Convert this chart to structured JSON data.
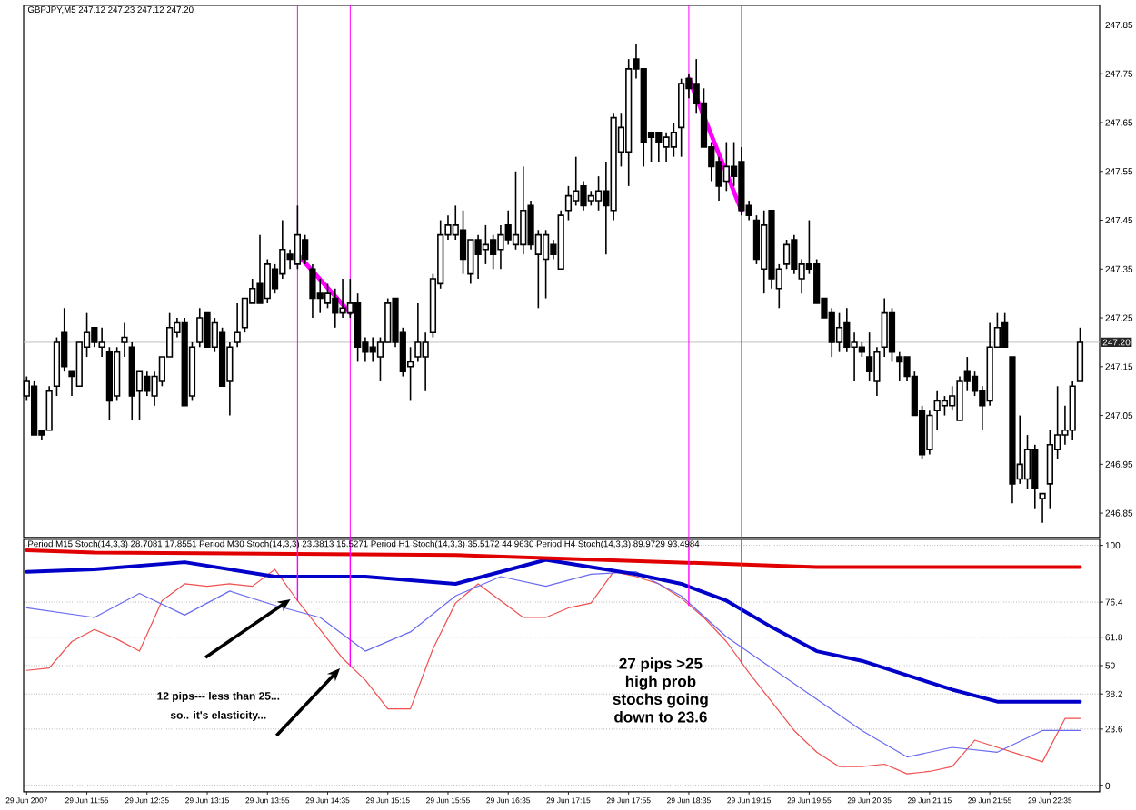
{
  "chart_data": [
    {
      "type": "candlestick",
      "title": "GBPJPY,M5 247.12 247.23 247.12 247.20",
      "color": "#000000",
      "x": [
        "2007-06-29T11:15",
        "2007-06-29T11:20",
        "2007-06-29T11:25",
        "2007-06-29T11:30",
        "2007-06-29T11:35",
        "2007-06-29T11:40",
        "2007-06-29T11:45",
        "2007-06-29T11:50",
        "2007-06-29T11:55",
        "2007-06-29T12:00",
        "2007-06-29T12:05",
        "2007-06-29T12:10",
        "2007-06-29T12:15",
        "2007-06-29T12:20",
        "2007-06-29T12:25",
        "2007-06-29T12:30",
        "2007-06-29T12:35",
        "2007-06-29T12:40",
        "2007-06-29T12:45",
        "2007-06-29T12:50",
        "2007-06-29T12:55",
        "2007-06-29T13:00",
        "2007-06-29T13:05",
        "2007-06-29T13:10",
        "2007-06-29T13:15",
        "2007-06-29T13:20",
        "2007-06-29T13:25",
        "2007-06-29T13:30",
        "2007-06-29T13:35",
        "2007-06-29T13:40",
        "2007-06-29T13:45",
        "2007-06-29T13:50",
        "2007-06-29T13:55",
        "2007-06-29T14:00",
        "2007-06-29T14:05",
        "2007-06-29T14:10",
        "2007-06-29T14:15",
        "2007-06-29T14:20",
        "2007-06-29T14:25",
        "2007-06-29T14:30",
        "2007-06-29T14:35",
        "2007-06-29T14:40",
        "2007-06-29T14:45",
        "2007-06-29T14:50",
        "2007-06-29T14:55",
        "2007-06-29T15:00",
        "2007-06-29T15:05",
        "2007-06-29T15:10",
        "2007-06-29T15:15",
        "2007-06-29T15:20",
        "2007-06-29T15:25",
        "2007-06-29T15:30",
        "2007-06-29T15:35",
        "2007-06-29T15:40",
        "2007-06-29T15:45",
        "2007-06-29T15:50",
        "2007-06-29T15:55",
        "2007-06-29T16:00",
        "2007-06-29T16:05",
        "2007-06-29T16:10",
        "2007-06-29T16:15",
        "2007-06-29T16:20",
        "2007-06-29T16:25",
        "2007-06-29T16:30",
        "2007-06-29T16:35",
        "2007-06-29T16:40",
        "2007-06-29T16:45",
        "2007-06-29T16:50",
        "2007-06-29T16:55",
        "2007-06-29T17:00",
        "2007-06-29T17:05",
        "2007-06-29T17:10",
        "2007-06-29T17:15",
        "2007-06-29T17:20",
        "2007-06-29T17:25",
        "2007-06-29T17:30",
        "2007-06-29T17:35",
        "2007-06-29T17:40",
        "2007-06-29T17:45",
        "2007-06-29T17:50",
        "2007-06-29T17:55",
        "2007-06-29T18:00",
        "2007-06-29T18:05",
        "2007-06-29T18:10",
        "2007-06-29T18:15",
        "2007-06-29T18:20",
        "2007-06-29T18:25",
        "2007-06-29T18:30",
        "2007-06-29T18:35",
        "2007-06-29T18:40",
        "2007-06-29T18:45",
        "2007-06-29T18:50",
        "2007-06-29T18:55",
        "2007-06-29T19:00",
        "2007-06-29T19:05",
        "2007-06-29T19:10",
        "2007-06-29T19:15",
        "2007-06-29T19:20",
        "2007-06-29T19:25",
        "2007-06-29T19:30",
        "2007-06-29T19:35",
        "2007-06-29T19:40",
        "2007-06-29T19:45",
        "2007-06-29T19:50",
        "2007-06-29T19:55",
        "2007-06-29T20:00",
        "2007-06-29T20:05",
        "2007-06-29T20:10",
        "2007-06-29T20:15",
        "2007-06-29T20:20",
        "2007-06-29T20:25",
        "2007-06-29T20:30",
        "2007-06-29T20:35",
        "2007-06-29T20:40",
        "2007-06-29T20:45",
        "2007-06-29T20:50",
        "2007-06-29T20:55",
        "2007-06-29T21:00",
        "2007-06-29T21:05",
        "2007-06-29T21:10",
        "2007-06-29T21:15",
        "2007-06-29T21:20",
        "2007-06-29T21:25",
        "2007-06-29T21:30",
        "2007-06-29T21:35",
        "2007-06-29T21:40",
        "2007-06-29T21:45",
        "2007-06-29T21:50",
        "2007-06-29T21:55",
        "2007-06-29T22:00",
        "2007-06-29T22:05",
        "2007-06-29T22:10",
        "2007-06-29T22:15",
        "2007-06-29T22:20",
        "2007-06-29T22:25",
        "2007-06-29T22:30",
        "2007-06-29T22:35",
        "2007-06-29T22:40",
        "2007-06-29T22:45",
        "2007-06-29T22:50",
        "2007-06-29T22:55"
      ],
      "ohlc": [
        [
          247.09,
          247.13,
          247.08,
          247.12
        ],
        [
          247.11,
          247.12,
          247.01,
          247.01
        ],
        [
          247.02,
          247.02,
          247.0,
          247.01
        ],
        [
          247.02,
          247.11,
          247.02,
          247.1
        ],
        [
          247.11,
          247.21,
          247.09,
          247.2
        ],
        [
          247.22,
          247.27,
          247.14,
          247.15
        ],
        [
          247.14,
          247.14,
          247.09,
          247.13
        ],
        [
          247.11,
          247.2,
          247.11,
          247.2
        ],
        [
          247.19,
          247.26,
          247.17,
          247.22
        ],
        [
          247.23,
          247.23,
          247.19,
          247.2
        ],
        [
          247.19,
          247.23,
          247.17,
          247.2
        ],
        [
          247.18,
          247.19,
          247.04,
          247.08
        ],
        [
          247.09,
          247.19,
          247.08,
          247.18
        ],
        [
          247.2,
          247.24,
          247.17,
          247.21
        ],
        [
          247.19,
          247.2,
          247.04,
          247.09
        ],
        [
          247.1,
          247.14,
          247.04,
          247.14
        ],
        [
          247.13,
          247.14,
          247.09,
          247.1
        ],
        [
          247.09,
          247.14,
          247.07,
          247.13
        ],
        [
          247.12,
          247.17,
          247.11,
          247.17
        ],
        [
          247.17,
          247.26,
          247.17,
          247.23
        ],
        [
          247.22,
          247.25,
          247.21,
          247.24
        ],
        [
          247.24,
          247.25,
          247.07,
          247.07
        ],
        [
          247.09,
          247.2,
          247.08,
          247.19
        ],
        [
          247.2,
          247.27,
          247.19,
          247.25
        ],
        [
          247.26,
          247.26,
          247.19,
          247.19
        ],
        [
          247.19,
          247.25,
          247.18,
          247.24
        ],
        [
          247.22,
          247.23,
          247.11,
          247.11
        ],
        [
          247.12,
          247.2,
          247.05,
          247.19
        ],
        [
          247.2,
          247.28,
          247.19,
          247.22
        ],
        [
          247.23,
          247.29,
          247.22,
          247.29
        ],
        [
          247.28,
          247.33,
          247.28,
          247.31
        ],
        [
          247.32,
          247.42,
          247.28,
          247.28
        ],
        [
          247.29,
          247.37,
          247.28,
          247.36
        ],
        [
          247.35,
          247.36,
          247.3,
          247.31
        ],
        [
          247.34,
          247.45,
          247.33,
          247.39
        ],
        [
          247.38,
          247.39,
          247.35,
          247.37
        ],
        [
          247.36,
          247.48,
          247.35,
          247.42
        ],
        [
          247.41,
          247.42,
          247.36,
          247.37
        ],
        [
          247.35,
          247.36,
          247.25,
          247.29
        ],
        [
          247.3,
          247.33,
          247.26,
          247.29
        ],
        [
          247.28,
          247.32,
          247.27,
          247.3
        ],
        [
          247.29,
          247.31,
          247.23,
          247.26
        ],
        [
          247.26,
          247.33,
          247.25,
          247.27
        ],
        [
          247.26,
          247.33,
          247.25,
          247.28
        ],
        [
          247.28,
          247.3,
          247.16,
          247.19
        ],
        [
          247.2,
          247.21,
          247.16,
          247.18
        ],
        [
          247.19,
          247.21,
          247.16,
          247.18
        ],
        [
          247.17,
          247.21,
          247.12,
          247.2
        ],
        [
          247.2,
          247.29,
          247.2,
          247.28
        ],
        [
          247.29,
          247.29,
          247.19,
          247.2
        ],
        [
          247.22,
          247.23,
          247.13,
          247.14
        ],
        [
          247.15,
          247.19,
          247.08,
          247.16
        ],
        [
          247.17,
          247.28,
          247.16,
          247.2
        ],
        [
          247.17,
          247.22,
          247.1,
          247.2
        ],
        [
          247.22,
          247.34,
          247.21,
          247.33
        ],
        [
          247.32,
          247.45,
          247.31,
          247.42
        ],
        [
          247.42,
          247.46,
          247.41,
          247.44
        ],
        [
          247.42,
          247.48,
          247.41,
          247.44
        ],
        [
          247.43,
          247.47,
          247.34,
          247.37
        ],
        [
          247.34,
          247.41,
          247.32,
          247.41
        ],
        [
          247.41,
          247.42,
          247.33,
          247.38
        ],
        [
          247.39,
          247.44,
          247.36,
          247.4
        ],
        [
          247.41,
          247.42,
          247.35,
          247.38
        ],
        [
          247.39,
          247.44,
          247.35,
          247.42
        ],
        [
          247.44,
          247.47,
          247.4,
          247.41
        ],
        [
          247.4,
          247.55,
          247.39,
          247.42
        ],
        [
          247.4,
          247.56,
          247.38,
          247.47
        ],
        [
          247.48,
          247.49,
          247.39,
          247.4
        ],
        [
          247.38,
          247.43,
          247.27,
          247.42
        ],
        [
          247.37,
          247.43,
          247.29,
          247.42
        ],
        [
          247.4,
          247.41,
          247.37,
          247.38
        ],
        [
          247.35,
          247.47,
          247.35,
          247.46
        ],
        [
          247.47,
          247.52,
          247.45,
          247.5
        ],
        [
          247.49,
          247.58,
          247.48,
          247.51
        ],
        [
          247.52,
          247.53,
          247.47,
          247.48
        ],
        [
          247.49,
          247.51,
          247.48,
          247.5
        ],
        [
          247.49,
          247.54,
          247.47,
          247.51
        ],
        [
          247.51,
          247.57,
          247.38,
          247.48
        ],
        [
          247.47,
          247.67,
          247.45,
          247.66
        ],
        [
          247.59,
          247.67,
          247.56,
          247.64
        ],
        [
          247.59,
          247.78,
          247.52,
          247.76
        ],
        [
          247.78,
          247.81,
          247.74,
          247.76
        ],
        [
          247.76,
          247.76,
          247.56,
          247.61
        ],
        [
          247.63,
          247.63,
          247.57,
          247.62
        ],
        [
          247.63,
          247.63,
          247.57,
          247.61
        ],
        [
          247.6,
          247.63,
          247.57,
          247.62
        ],
        [
          247.6,
          247.65,
          247.58,
          247.63
        ],
        [
          247.64,
          247.74,
          247.58,
          247.73
        ],
        [
          247.74,
          247.75,
          247.7,
          247.72
        ],
        [
          247.73,
          247.78,
          247.67,
          247.69
        ],
        [
          247.69,
          247.72,
          247.6,
          247.6
        ],
        [
          247.6,
          247.61,
          247.53,
          247.56
        ],
        [
          247.57,
          247.58,
          247.49,
          247.52
        ],
        [
          247.53,
          247.61,
          247.51,
          247.56
        ],
        [
          247.56,
          247.61,
          247.52,
          247.54
        ],
        [
          247.57,
          247.6,
          247.46,
          247.47
        ],
        [
          247.48,
          247.49,
          247.45,
          247.46
        ],
        [
          247.45,
          247.46,
          247.36,
          247.37
        ],
        [
          247.35,
          247.47,
          247.3,
          247.44
        ],
        [
          247.47,
          247.47,
          247.31,
          247.33
        ],
        [
          247.31,
          247.36,
          247.27,
          247.35
        ],
        [
          247.36,
          247.41,
          247.35,
          247.4
        ],
        [
          247.41,
          247.42,
          247.34,
          247.35
        ],
        [
          247.33,
          247.37,
          247.3,
          247.36
        ],
        [
          247.36,
          247.45,
          247.34,
          247.35
        ],
        [
          247.36,
          247.37,
          247.28,
          247.28
        ],
        [
          247.29,
          247.29,
          247.25,
          247.25
        ],
        [
          247.26,
          247.27,
          247.17,
          247.2
        ],
        [
          247.2,
          247.26,
          247.18,
          247.23
        ],
        [
          247.24,
          247.27,
          247.18,
          247.19
        ],
        [
          247.19,
          247.22,
          247.12,
          247.2
        ],
        [
          247.19,
          247.2,
          247.17,
          247.18
        ],
        [
          247.17,
          247.22,
          247.12,
          247.14
        ],
        [
          247.12,
          247.19,
          247.09,
          247.18
        ],
        [
          247.19,
          247.29,
          247.17,
          247.26
        ],
        [
          247.26,
          247.27,
          247.16,
          247.18
        ],
        [
          247.17,
          247.18,
          247.12,
          247.16
        ],
        [
          247.17,
          247.17,
          247.12,
          247.13
        ],
        [
          247.13,
          247.14,
          247.05,
          247.05
        ],
        [
          247.06,
          247.07,
          246.96,
          246.97
        ],
        [
          246.98,
          247.06,
          246.97,
          247.05
        ],
        [
          247.06,
          247.1,
          247.02,
          247.08
        ],
        [
          247.07,
          247.09,
          247.05,
          247.08
        ],
        [
          247.07,
          247.11,
          247.06,
          247.09
        ],
        [
          247.04,
          247.13,
          247.04,
          247.12
        ],
        [
          247.14,
          247.17,
          247.1,
          247.12
        ],
        [
          247.13,
          247.14,
          247.09,
          247.1
        ],
        [
          247.1,
          247.11,
          247.02,
          247.07
        ],
        [
          247.08,
          247.24,
          247.07,
          247.19
        ],
        [
          247.19,
          247.26,
          247.19,
          247.23
        ],
        [
          247.24,
          247.26,
          247.19,
          247.19
        ],
        [
          247.17,
          247.17,
          246.87,
          246.91
        ],
        [
          246.92,
          247.05,
          246.91,
          246.95
        ],
        [
          246.92,
          247.01,
          246.9,
          246.98
        ],
        [
          246.98,
          246.99,
          246.86,
          246.9
        ],
        [
          246.88,
          246.89,
          246.83,
          246.89
        ],
        [
          246.91,
          247.02,
          246.86,
          246.99
        ],
        [
          246.98,
          247.11,
          246.96,
          247.01
        ],
        [
          247.01,
          247.07,
          246.99,
          247.02
        ],
        [
          247.02,
          247.12,
          247.0,
          247.11
        ],
        [
          247.12,
          247.23,
          247.12,
          247.2
        ]
      ],
      "series": [
        {
          "type": "line",
          "x": [
            "2007-06-29T14:15",
            "2007-06-29T14:50"
          ],
          "values": [
            247.38,
            247.26
          ],
          "color": "#ff00ff"
        },
        {
          "type": "line",
          "x": [
            "2007-06-29T18:35",
            "2007-06-29T19:10"
          ],
          "values": [
            247.74,
            247.47
          ],
          "color": "#ff00ff"
        }
      ],
      "xlim": [
        "2007-06-29T11:13",
        "2007-06-29T23:08"
      ],
      "ylim": [
        246.8,
        247.89
      ],
      "yticks": [
        246.85,
        246.95,
        247.05,
        247.15,
        247.25,
        247.35,
        247.45,
        247.55,
        247.65,
        247.75,
        247.85
      ],
      "ref_lines": [
        {
          "axis": "y",
          "value": 247.2,
          "label": "247.20",
          "color": "#c0c0c0"
        },
        {
          "axis": "x",
          "value": "2007-06-29T14:15",
          "color": "#ff00ff"
        },
        {
          "axis": "x",
          "value": "2007-06-29T14:50",
          "color": "#ff00ff"
        },
        {
          "axis": "x",
          "value": "2007-06-29T18:35",
          "color": "#ff00ff"
        },
        {
          "axis": "x",
          "value": "2007-06-29T19:10",
          "color": "#ff00ff"
        }
      ],
      "tick_labels": "y"
    },
    {
      "type": "line",
      "title": "Period M15 Stoch(14,3,3) 28.7081 17.8551 Period M30 Stoch(14,3,3) 23.3813 15.5271 Period H1 Stoch(14,3,3) 35.5172 44.9630 Period H4 Stoch(14,3,3) 89.9729 93.4984",
      "series": [
        {
          "color": "#f05050",
          "x": [
            "2007-06-29T11:15",
            "2007-06-29T11:30",
            "2007-06-29T11:45",
            "2007-06-29T12:00",
            "2007-06-29T12:15",
            "2007-06-29T12:30",
            "2007-06-29T12:45",
            "2007-06-29T13:00",
            "2007-06-29T13:15",
            "2007-06-29T13:30",
            "2007-06-29T13:45",
            "2007-06-29T14:00",
            "2007-06-29T14:15",
            "2007-06-29T14:30",
            "2007-06-29T14:45",
            "2007-06-29T15:00",
            "2007-06-29T15:15",
            "2007-06-29T15:30",
            "2007-06-29T15:45",
            "2007-06-29T16:00",
            "2007-06-29T16:15",
            "2007-06-29T16:30",
            "2007-06-29T16:45",
            "2007-06-29T17:00",
            "2007-06-29T17:15",
            "2007-06-29T17:30",
            "2007-06-29T17:45",
            "2007-06-29T18:00",
            "2007-06-29T18:15",
            "2007-06-29T18:30",
            "2007-06-29T18:45",
            "2007-06-29T19:00",
            "2007-06-29T19:15",
            "2007-06-29T19:30",
            "2007-06-29T19:45",
            "2007-06-29T20:00",
            "2007-06-29T20:15",
            "2007-06-29T20:30",
            "2007-06-29T20:45",
            "2007-06-29T21:00",
            "2007-06-29T21:15",
            "2007-06-29T21:30",
            "2007-06-29T21:45",
            "2007-06-29T22:00",
            "2007-06-29T22:15",
            "2007-06-29T22:30",
            "2007-06-29T22:45",
            "2007-06-29T22:55"
          ],
          "values": [
            48,
            49,
            60,
            65,
            61,
            56,
            77,
            84,
            83,
            84,
            83,
            90,
            77,
            65,
            53,
            44,
            32,
            32,
            57,
            76,
            84,
            77,
            70,
            70,
            74,
            76,
            89,
            87,
            84,
            78,
            70,
            60,
            47,
            35,
            23,
            14,
            8,
            8,
            9,
            5,
            6,
            8,
            19,
            16,
            13,
            10,
            28,
            28
          ]
        },
        {
          "color": "#6a6af0",
          "x": [
            "2007-06-29T11:15",
            "2007-06-29T12:00",
            "2007-06-29T12:30",
            "2007-06-29T13:00",
            "2007-06-29T13:30",
            "2007-06-29T14:00",
            "2007-06-29T14:30",
            "2007-06-29T15:00",
            "2007-06-29T15:30",
            "2007-06-29T16:00",
            "2007-06-29T16:30",
            "2007-06-29T17:00",
            "2007-06-29T17:30",
            "2007-06-29T18:00",
            "2007-06-29T18:30",
            "2007-06-29T19:00",
            "2007-06-29T19:30",
            "2007-06-29T20:00",
            "2007-06-29T20:30",
            "2007-06-29T21:00",
            "2007-06-29T21:30",
            "2007-06-29T22:00",
            "2007-06-29T22:30",
            "2007-06-29T22:55"
          ],
          "values": [
            74,
            70,
            80,
            71,
            81,
            75,
            70,
            56,
            64,
            79,
            87,
            83,
            88,
            89,
            79,
            62,
            49,
            36,
            23,
            12,
            16,
            14,
            23,
            23
          ]
        },
        {
          "color": "#0000c8",
          "x": [
            "2007-06-29T11:15",
            "2007-06-29T12:00",
            "2007-06-29T13:00",
            "2007-06-29T14:00",
            "2007-06-29T15:00",
            "2007-06-29T16:00",
            "2007-06-29T17:00",
            "2007-06-29T17:30",
            "2007-06-29T18:00",
            "2007-06-29T18:30",
            "2007-06-29T19:00",
            "2007-06-29T19:30",
            "2007-06-29T20:00",
            "2007-06-29T20:30",
            "2007-06-29T21:00",
            "2007-06-29T21:30",
            "2007-06-29T22:00",
            "2007-06-29T22:55"
          ],
          "values": [
            89,
            90,
            93,
            87,
            87,
            84,
            94,
            91,
            88,
            84,
            77,
            66,
            56,
            52,
            46,
            40,
            35,
            35
          ]
        },
        {
          "color": "#e00000",
          "x": [
            "2007-06-29T11:15",
            "2007-06-29T12:00",
            "2007-06-29T16:00",
            "2007-06-29T20:00",
            "2007-06-29T22:55"
          ],
          "values": [
            98,
            97,
            96,
            91,
            91
          ]
        },
        {
          "color": "#ff00ff",
          "x": [
            "2007-06-29T14:15",
            "2007-06-29T14:15"
          ],
          "values": [
            102.5,
            77
          ]
        },
        {
          "color": "#ff00ff",
          "x": [
            "2007-06-29T14:50",
            "2007-06-29T14:50"
          ],
          "values": [
            102.5,
            50
          ]
        },
        {
          "color": "#ff00ff",
          "x": [
            "2007-06-29T18:35",
            "2007-06-29T18:35"
          ],
          "values": [
            102.5,
            75
          ]
        },
        {
          "color": "#ff00ff",
          "x": [
            "2007-06-29T19:10",
            "2007-06-29T19:10"
          ],
          "values": [
            102.5,
            51
          ]
        }
      ],
      "xlim": [
        "2007-06-29T11:13",
        "2007-06-29T23:08"
      ],
      "ylim": [
        -2.5,
        102.5
      ],
      "xticks": [
        {
          "value": "2007-06-29T11:15",
          "label": "29 Jun 2007"
        },
        {
          "value": "2007-06-29T11:55",
          "label": "29 Jun 11:55"
        },
        {
          "value": "2007-06-29T12:35",
          "label": "29 Jun 12:35"
        },
        {
          "value": "2007-06-29T13:15",
          "label": "29 Jun 13:15"
        },
        {
          "value": "2007-06-29T13:55",
          "label": "29 Jun 13:55"
        },
        {
          "value": "2007-06-29T14:35",
          "label": "29 Jun 14:35"
        },
        {
          "value": "2007-06-29T15:15",
          "label": "29 Jun 15:15"
        },
        {
          "value": "2007-06-29T15:55",
          "label": "29 Jun 15:55"
        },
        {
          "value": "2007-06-29T16:35",
          "label": "29 Jun 16:35"
        },
        {
          "value": "2007-06-29T17:15",
          "label": "29 Jun 17:15"
        },
        {
          "value": "2007-06-29T17:55",
          "label": "29 Jun 17:55"
        },
        {
          "value": "2007-06-29T18:35",
          "label": "29 Jun 18:35"
        },
        {
          "value": "2007-06-29T19:15",
          "label": "29 Jun 19:15"
        },
        {
          "value": "2007-06-29T19:55",
          "label": "29 Jun 19:55"
        },
        {
          "value": "2007-06-29T20:35",
          "label": "29 Jun 20:35"
        },
        {
          "value": "2007-06-29T21:15",
          "label": "29 Jun 21:15"
        },
        {
          "value": "2007-06-29T21:55",
          "label": "29 Jun 21:55"
        },
        {
          "value": "2007-06-29T22:35",
          "label": "29 Jun 22:35"
        }
      ],
      "yticks": [
        0,
        23.6,
        38.2,
        50,
        61.8,
        76.4,
        100
      ],
      "grid": "y",
      "annotations": [
        "12 pips--- less than 25... so.. it's elasticity...",
        "27 pips >25 high prob stochs going down to 23.6"
      ]
    }
  ]
}
